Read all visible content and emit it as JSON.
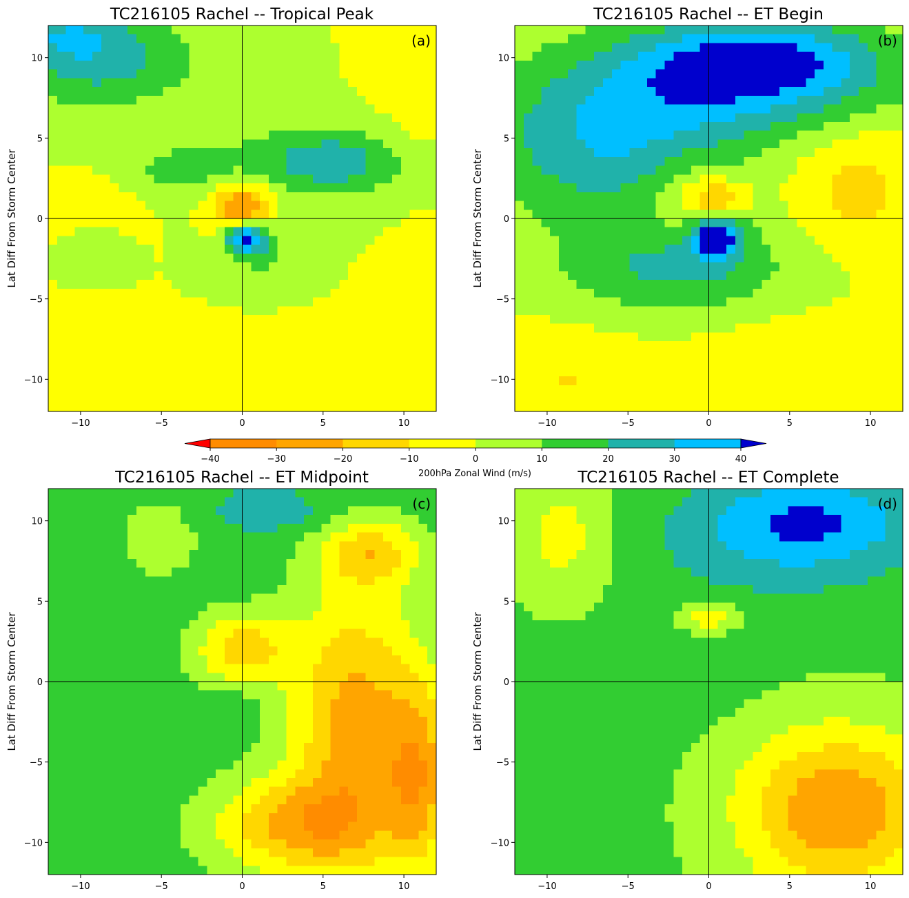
{
  "chart_data": {
    "type": "contourf",
    "colorbar": {
      "label": "200hPa Zonal Wind (m/s)",
      "levels": [
        -40,
        -30,
        -20,
        -10,
        0,
        10,
        20,
        30,
        40
      ],
      "tick_labels": [
        "−40",
        "−30",
        "−20",
        "−10",
        "0",
        "10",
        "20",
        "30",
        "40"
      ],
      "colors": [
        "#ff8c00",
        "#ffa500",
        "#ffd700",
        "#ffff00",
        "#adff2f",
        "#32cd32",
        "#20b2aa",
        "#00bfff"
      ],
      "under_color": "#ff0000",
      "over_color": "#0000cd",
      "extend": "both"
    },
    "axes": {
      "xlim": [
        -12,
        12
      ],
      "ylim": [
        -12,
        12
      ],
      "xticks": [
        -10,
        -5,
        0,
        5,
        10
      ],
      "yticks": [
        -10,
        -5,
        0,
        5,
        10
      ],
      "tick_labels": [
        "−10",
        "−5",
        "0",
        "5",
        "10"
      ],
      "ylabel": "Lat Diff From Storm Center",
      "reference_lines": {
        "x": 0,
        "y": 0
      }
    },
    "panels": [
      {
        "tag": "(a)",
        "title": "TC216105 Rachel -- Tropical Peak",
        "background": 0,
        "features": [
          {
            "x": 0,
            "y": -10.5,
            "sx": 14,
            "sy": 2.5,
            "v": -6
          },
          {
            "x": 11,
            "y": 7,
            "sx": 2.5,
            "sy": 6,
            "v": -8
          },
          {
            "x": -9,
            "y": 1,
            "sx": 3,
            "sy": 2,
            "v": -3
          },
          {
            "x": -9,
            "y": 10,
            "sx": 6,
            "sy": 3,
            "v": 26
          },
          {
            "x": -11,
            "y": 11.5,
            "sx": 3,
            "sy": 1.5,
            "v": 14
          },
          {
            "x": 5,
            "y": 3.5,
            "sx": 8,
            "sy": 2.5,
            "v": 18
          },
          {
            "x": 5.5,
            "y": 3.5,
            "sx": 3,
            "sy": 1.5,
            "v": 10
          },
          {
            "x": -4,
            "y": 3,
            "sx": 2.5,
            "sy": 1.2,
            "v": 12
          },
          {
            "x": 1,
            "y": -2,
            "sx": 2.2,
            "sy": 1.8,
            "v": 14
          },
          {
            "x": -9,
            "y": -2,
            "sx": 1.5,
            "sy": 1,
            "v": 10
          },
          {
            "x": 0,
            "y": 0.8,
            "sx": 1.8,
            "sy": 1.4,
            "v": -35
          },
          {
            "x": 0.2,
            "y": -1.2,
            "sx": 1.1,
            "sy": 0.9,
            "v": 40
          }
        ]
      },
      {
        "tag": "(b)",
        "title": "TC216105 Rachel -- ET Begin",
        "background": 0,
        "features": [
          {
            "x": -6,
            "y": 5,
            "sx": 8,
            "sy": 5,
            "v": 30
          },
          {
            "x": 3,
            "y": 9,
            "sx": 9,
            "sy": 3.5,
            "v": 35
          },
          {
            "x": 3,
            "y": 10,
            "sx": 6,
            "sy": 2,
            "v": 18
          },
          {
            "x": -2,
            "y": -3,
            "sx": 7,
            "sy": 3,
            "v": 22
          },
          {
            "x": -1,
            "y": 1,
            "sx": 3,
            "sy": 3,
            "v": -14
          },
          {
            "x": 0.5,
            "y": 1.2,
            "sx": 1.8,
            "sy": 1.2,
            "v": -20
          },
          {
            "x": 0.5,
            "y": -1.2,
            "sx": 1.8,
            "sy": 1.5,
            "v": 30
          },
          {
            "x": 0.5,
            "y": -1.2,
            "sx": 0.9,
            "sy": 0.8,
            "v": 30
          },
          {
            "x": 9,
            "y": 2,
            "sx": 4,
            "sy": 4,
            "v": -14
          },
          {
            "x": 6,
            "y": -9,
            "sx": 8,
            "sy": 3,
            "v": -8
          },
          {
            "x": -9,
            "y": -10,
            "sx": 4,
            "sy": 3,
            "v": -10
          }
        ]
      },
      {
        "tag": "(c)",
        "title": "TC216105 Rachel -- ET Midpoint",
        "background": 15,
        "features": [
          {
            "x": 7,
            "y": -3,
            "sx": 4,
            "sy": 9,
            "v": -25
          },
          {
            "x": 11,
            "y": -6,
            "sx": 2,
            "sy": 6,
            "v": -18
          },
          {
            "x": 3,
            "y": -9,
            "sx": 5,
            "sy": 3,
            "v": -18
          },
          {
            "x": 2,
            "y": 10.5,
            "sx": 4,
            "sy": 1.5,
            "v": 25
          },
          {
            "x": 1,
            "y": 11,
            "sx": 2.5,
            "sy": 1.0,
            "v": 20
          },
          {
            "x": 0,
            "y": 2,
            "sx": 3,
            "sy": 2.2,
            "v": -15
          },
          {
            "x": 0,
            "y": -1,
            "sx": 1.2,
            "sy": 0.9,
            "v": 18
          },
          {
            "x": -10,
            "y": -4,
            "sx": 3,
            "sy": 5,
            "v": 10
          },
          {
            "x": -5,
            "y": 9,
            "sx": 3,
            "sy": 3,
            "v": 6
          },
          {
            "x": 8,
            "y": 8,
            "sx": 3,
            "sy": 2,
            "v": -12
          }
        ]
      },
      {
        "tag": "(d)",
        "title": "TC216105 Rachel -- ET Complete",
        "background": 12,
        "features": [
          {
            "x": 8,
            "y": -8,
            "sx": 6,
            "sy": 5,
            "v": -30
          },
          {
            "x": -4,
            "y": -12,
            "sx": 6,
            "sy": 6,
            "v": 12
          },
          {
            "x": 6,
            "y": 10,
            "sx": 7,
            "sy": 3,
            "v": 40
          },
          {
            "x": 3,
            "y": 7,
            "sx": 9,
            "sy": 3.5,
            "v": 18
          },
          {
            "x": -2,
            "y": 1,
            "sx": 5,
            "sy": 3,
            "v": 16
          },
          {
            "x": 0,
            "y": 4,
            "sx": 2,
            "sy": 1,
            "v": -10
          },
          {
            "x": -9,
            "y": 9,
            "sx": 3,
            "sy": 4,
            "v": -4
          }
        ]
      }
    ]
  }
}
